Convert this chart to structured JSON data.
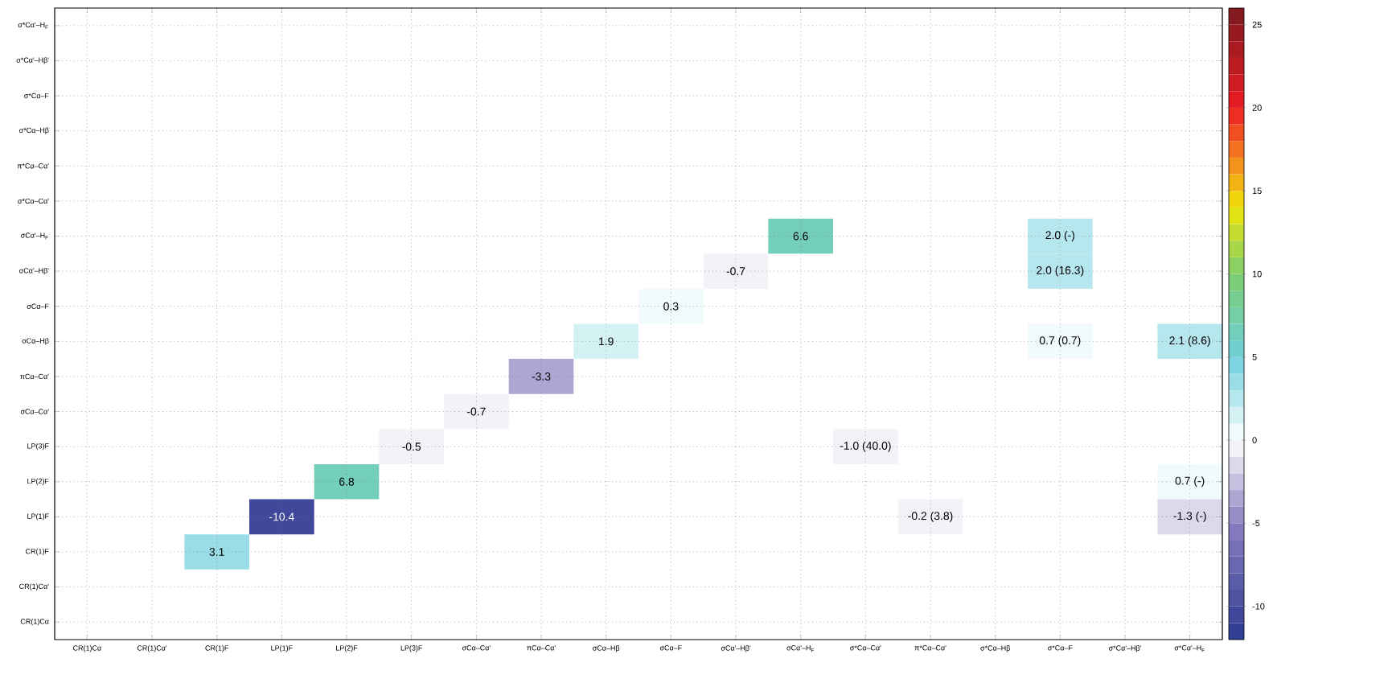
{
  "chart_data": {
    "type": "heatmap",
    "categories": [
      "CR(1)Cα",
      "CR(1)Cα'",
      "CR(1)F",
      "LP(1)F",
      "LP(2)F",
      "LP(3)F",
      "σCα–Cα'",
      "πCα–Cα'",
      "σCα–Hβ",
      "σCα–F",
      "σCα'–Hβ'",
      "σCα'–H$_{F}$",
      "σ*Cα–Cα'",
      "π*Cα–Cα'",
      "σ*Cα–Hβ",
      "σ*Cα–F",
      "σ*Cα'–Hβ'",
      "σ*Cα'–H$_{F}$"
    ],
    "y_categories": [
      "σ*Cα'–H$_{F}$",
      "σ*Cα'–Hβ'",
      "σ*Cα–F",
      "σ*Cα–Hβ",
      "π*Cα–Cα'",
      "σ*Cα–Cα'",
      "σCα'–H$_{F}$",
      "σCα'–Hβ'",
      "σCα–F",
      "σCα–Hβ",
      "πCα–Cα'",
      "σCα–Cα'",
      "LP(3)F",
      "LP(2)F",
      "LP(1)F",
      "CR(1)F",
      "CR(1)Cα'",
      "CR(1)Cα"
    ],
    "cells": [
      [
        null,
        null,
        null,
        null,
        null,
        null,
        null,
        null,
        null,
        null,
        null,
        null,
        null,
        null,
        null,
        null,
        null,
        null
      ],
      [
        null,
        null,
        null,
        null,
        null,
        null,
        null,
        null,
        null,
        null,
        null,
        null,
        null,
        null,
        null,
        null,
        null,
        null
      ],
      [
        null,
        null,
        null,
        null,
        null,
        null,
        null,
        null,
        null,
        null,
        null,
        null,
        null,
        null,
        null,
        null,
        null,
        null
      ],
      [
        null,
        null,
        null,
        null,
        null,
        null,
        null,
        null,
        null,
        null,
        null,
        null,
        null,
        null,
        null,
        null,
        null,
        null
      ],
      [
        null,
        null,
        null,
        null,
        null,
        null,
        null,
        null,
        null,
        null,
        null,
        null,
        null,
        null,
        null,
        null,
        null,
        null
      ],
      [
        null,
        null,
        null,
        null,
        null,
        null,
        null,
        null,
        null,
        null,
        null,
        null,
        null,
        null,
        null,
        null,
        null,
        null
      ],
      [
        null,
        null,
        null,
        null,
        null,
        null,
        null,
        null,
        null,
        null,
        null,
        6.6,
        null,
        null,
        null,
        2.0,
        null,
        null
      ],
      [
        null,
        null,
        null,
        null,
        null,
        null,
        null,
        null,
        null,
        null,
        -0.7,
        null,
        null,
        null,
        null,
        2.0,
        null,
        null
      ],
      [
        null,
        null,
        null,
        null,
        null,
        null,
        null,
        null,
        null,
        0.3,
        null,
        null,
        null,
        null,
        null,
        null,
        null,
        null
      ],
      [
        null,
        null,
        null,
        null,
        null,
        null,
        null,
        null,
        1.9,
        null,
        null,
        null,
        null,
        null,
        null,
        0.7,
        null,
        2.1
      ],
      [
        null,
        null,
        null,
        null,
        null,
        null,
        null,
        -3.3,
        null,
        null,
        null,
        null,
        null,
        null,
        null,
        null,
        null,
        null
      ],
      [
        null,
        null,
        null,
        null,
        null,
        null,
        -0.7,
        null,
        null,
        null,
        null,
        null,
        null,
        null,
        null,
        null,
        null,
        null
      ],
      [
        null,
        null,
        null,
        null,
        null,
        -0.5,
        null,
        null,
        null,
        null,
        null,
        null,
        -1.0,
        null,
        null,
        null,
        null,
        null
      ],
      [
        null,
        null,
        null,
        null,
        6.8,
        null,
        null,
        null,
        null,
        null,
        null,
        null,
        null,
        null,
        null,
        null,
        null,
        0.7
      ],
      [
        null,
        null,
        null,
        -10.4,
        null,
        null,
        null,
        null,
        null,
        null,
        null,
        null,
        null,
        -0.2,
        null,
        null,
        null,
        -1.3
      ],
      [
        null,
        null,
        3.1,
        null,
        null,
        null,
        null,
        null,
        null,
        null,
        null,
        null,
        null,
        null,
        null,
        null,
        null,
        null
      ],
      [
        null,
        null,
        null,
        null,
        null,
        null,
        null,
        null,
        null,
        null,
        null,
        null,
        null,
        null,
        null,
        null,
        null,
        null
      ],
      [
        null,
        null,
        null,
        null,
        null,
        null,
        null,
        null,
        null,
        null,
        null,
        null,
        null,
        null,
        null,
        null,
        null,
        null
      ]
    ],
    "cell_labels": [
      [
        null,
        null,
        null,
        null,
        null,
        null,
        null,
        null,
        null,
        null,
        null,
        null,
        null,
        null,
        null,
        null,
        null,
        null
      ],
      [
        null,
        null,
        null,
        null,
        null,
        null,
        null,
        null,
        null,
        null,
        null,
        null,
        null,
        null,
        null,
        null,
        null,
        null
      ],
      [
        null,
        null,
        null,
        null,
        null,
        null,
        null,
        null,
        null,
        null,
        null,
        null,
        null,
        null,
        null,
        null,
        null,
        null
      ],
      [
        null,
        null,
        null,
        null,
        null,
        null,
        null,
        null,
        null,
        null,
        null,
        null,
        null,
        null,
        null,
        null,
        null,
        null
      ],
      [
        null,
        null,
        null,
        null,
        null,
        null,
        null,
        null,
        null,
        null,
        null,
        null,
        null,
        null,
        null,
        null,
        null,
        null
      ],
      [
        null,
        null,
        null,
        null,
        null,
        null,
        null,
        null,
        null,
        null,
        null,
        null,
        null,
        null,
        null,
        null,
        null,
        null
      ],
      [
        null,
        null,
        null,
        null,
        null,
        null,
        null,
        null,
        null,
        null,
        null,
        "6.6",
        null,
        null,
        null,
        "2.0 (-)",
        null,
        null
      ],
      [
        null,
        null,
        null,
        null,
        null,
        null,
        null,
        null,
        null,
        null,
        "-0.7",
        null,
        null,
        null,
        null,
        "2.0 (16.3)",
        null,
        null
      ],
      [
        null,
        null,
        null,
        null,
        null,
        null,
        null,
        null,
        null,
        "0.3",
        null,
        null,
        null,
        null,
        null,
        null,
        null,
        null
      ],
      [
        null,
        null,
        null,
        null,
        null,
        null,
        null,
        null,
        "1.9",
        null,
        null,
        null,
        null,
        null,
        null,
        "0.7 (0.7)",
        null,
        "2.1 (8.6)"
      ],
      [
        null,
        null,
        null,
        null,
        null,
        null,
        null,
        "-3.3",
        null,
        null,
        null,
        null,
        null,
        null,
        null,
        null,
        null,
        null
      ],
      [
        null,
        null,
        null,
        null,
        null,
        null,
        "-0.7",
        null,
        null,
        null,
        null,
        null,
        null,
        null,
        null,
        null,
        null,
        null
      ],
      [
        null,
        null,
        null,
        null,
        null,
        "-0.5",
        null,
        null,
        null,
        null,
        null,
        null,
        "-1.0 (40.0)",
        null,
        null,
        null,
        null,
        null
      ],
      [
        null,
        null,
        null,
        null,
        "6.8",
        null,
        null,
        null,
        null,
        null,
        null,
        null,
        null,
        null,
        null,
        null,
        null,
        "0.7 (-)"
      ],
      [
        null,
        null,
        null,
        "-10.4",
        null,
        null,
        null,
        null,
        null,
        null,
        null,
        null,
        null,
        "-0.2 (3.8)",
        null,
        null,
        null,
        "-1.3 (-)"
      ],
      [
        null,
        null,
        "3.1",
        null,
        null,
        null,
        null,
        null,
        null,
        null,
        null,
        null,
        null,
        null,
        null,
        null,
        null,
        null
      ],
      [
        null,
        null,
        null,
        null,
        null,
        null,
        null,
        null,
        null,
        null,
        null,
        null,
        null,
        null,
        null,
        null,
        null,
        null
      ],
      [
        null,
        null,
        null,
        null,
        null,
        null,
        null,
        null,
        null,
        null,
        null,
        null,
        null,
        null,
        null,
        null,
        null,
        null
      ]
    ],
    "clim": [
      -12,
      26
    ],
    "cticks": [
      -10,
      -5,
      0,
      5,
      10,
      15,
      20,
      25
    ],
    "grid": true
  }
}
